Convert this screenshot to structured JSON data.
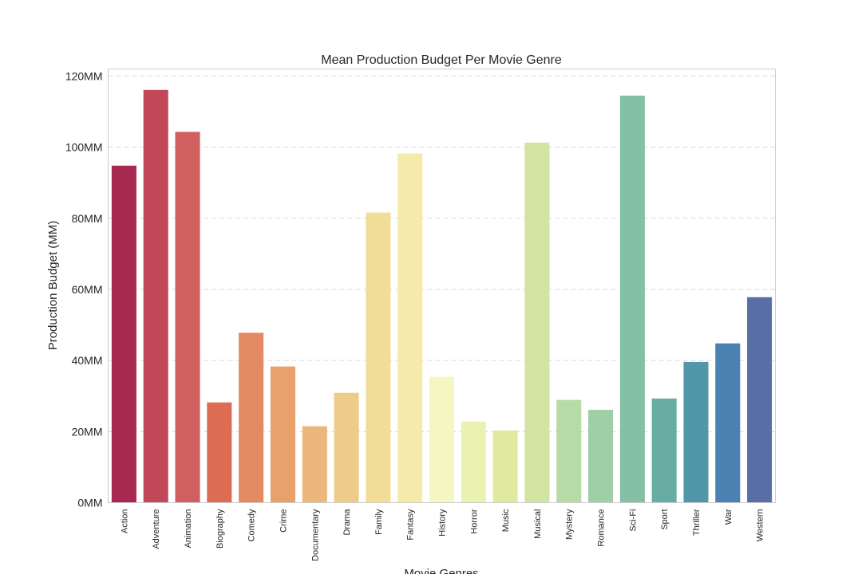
{
  "chart_data": {
    "type": "bar",
    "title": "Mean Production Budget Per Movie Genre",
    "xlabel": "Movie Genres",
    "ylabel": "Production Budget (MM)",
    "ylim": [
      0,
      122
    ],
    "yticks": [
      0,
      20,
      40,
      60,
      80,
      100,
      120
    ],
    "ytick_labels": [
      "0MM",
      "20MM",
      "40MM",
      "60MM",
      "80MM",
      "100MM",
      "120MM"
    ],
    "grid": "horizontal, dashed",
    "categories": [
      "Action",
      "Adventure",
      "Animation",
      "Biography",
      "Comedy",
      "Crime",
      "Documentary",
      "Drama",
      "Family",
      "Fantasy",
      "History",
      "Horror",
      "Music",
      "Musical",
      "Mystery",
      "Romance",
      "Sci-Fi",
      "Sport",
      "Thriller",
      "War",
      "Western"
    ],
    "values": [
      94.8,
      116.1,
      104.3,
      28.2,
      47.8,
      38.3,
      21.5,
      30.9,
      81.6,
      98.2,
      35.4,
      22.8,
      20.3,
      101.3,
      28.9,
      26.1,
      114.5,
      29.3,
      39.6,
      44.8,
      57.8
    ],
    "colors": [
      "#a8294f",
      "#c14858",
      "#d05f5f",
      "#dc6d52",
      "#e48a62",
      "#e9a06b",
      "#ecb77b",
      "#eecb88",
      "#f1dd98",
      "#f5eaa9",
      "#f6f6c0",
      "#ebf1b1",
      "#dfeaa0",
      "#d1e4a2",
      "#b7dba7",
      "#9ecfa6",
      "#84c0a5",
      "#67ada4",
      "#5297a9",
      "#4a82b1",
      "#5a6ea6"
    ]
  }
}
